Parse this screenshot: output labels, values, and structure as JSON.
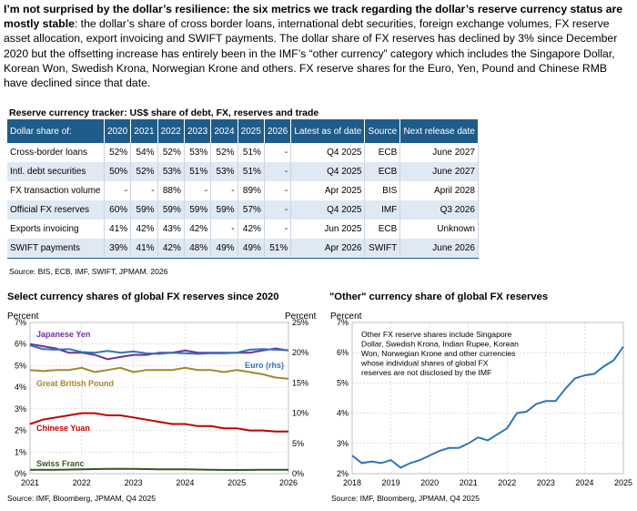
{
  "intro": {
    "bold": "I’m not surprised by the dollar’s resilience: the six metrics we track regarding the dollar’s reserve currency status are mostly stable",
    "rest": ": the dollar’s share of cross border loans, international debt securities, foreign exchange volumes, FX reserve asset allocation, export invoicing and SWIFT payments.  The dollar share of FX reserves has declined by 3% since December 2020 but the offsetting increase has entirely been in the IMF’s “other currency” category which includes the Singapore Dollar, Korean Won, Swedish Krona, Norwegian Krone and others.  FX reserve shares for the Euro, Yen, Pound and Chinese RMB have declined since that date."
  },
  "table": {
    "title": "Reserve currency tracker: US$ share of debt, FX, reserves and trade",
    "headers": [
      "Dollar share of:",
      "2020",
      "2021",
      "2022",
      "2023",
      "2024",
      "2025",
      "2026",
      "Latest as of date",
      "Source",
      "Next release date"
    ],
    "rows": [
      [
        "Cross-border loans",
        "52%",
        "54%",
        "52%",
        "53%",
        "52%",
        "51%",
        "-",
        "Q4 2025",
        "ECB",
        "June 2027"
      ],
      [
        "Intl. debt securities",
        "50%",
        "52%",
        "53%",
        "51%",
        "53%",
        "51%",
        "-",
        "Q4 2025",
        "ECB",
        "June 2027"
      ],
      [
        "FX transaction volume",
        "-",
        "-",
        "88%",
        "-",
        "-",
        "89%",
        "-",
        "Apr 2025",
        "BIS",
        "April 2028"
      ],
      [
        "Official FX reserves",
        "60%",
        "59%",
        "59%",
        "59%",
        "59%",
        "57%",
        "-",
        "Q4 2025",
        "IMF",
        "Q3 2026"
      ],
      [
        "Exports invoicing",
        "41%",
        "42%",
        "43%",
        "42%",
        "-",
        "42%",
        "-",
        "Jun 2025",
        "ECB",
        "Unknown"
      ],
      [
        "SWIFT payments",
        "39%",
        "41%",
        "42%",
        "48%",
        "49%",
        "49%",
        "51%",
        "Apr 2026",
        "SWIFT",
        "June 2026"
      ]
    ],
    "source": "Source: BIS, ECB, IMF, SWIFT, JPMAM. 2026"
  },
  "colors": {
    "header": "#1f5c8a",
    "alt_row": "#dfe9f4",
    "yen": "#7030a0",
    "euro": "#2e75b6",
    "gbp": "#a6862e",
    "cny": "#c00000",
    "chf": "#375623",
    "other": "#2e75b6"
  },
  "chart_data": [
    {
      "type": "line",
      "title": "Select currency shares of global FX reserves since 2020",
      "ylabel": "Percent",
      "y2label": "Percent",
      "ylim": [
        0,
        7
      ],
      "y2lim": [
        0,
        25
      ],
      "yticks": [
        "0%",
        "1%",
        "2%",
        "3%",
        "4%",
        "5%",
        "6%",
        "7%"
      ],
      "y2ticks": [
        "0%",
        "5%",
        "10%",
        "15%",
        "20%",
        "25%"
      ],
      "xticks": [
        "2021",
        "2022",
        "2023",
        "2024",
        "2025",
        "2026"
      ],
      "xlim": [
        2021,
        2026
      ],
      "grid": true,
      "series": [
        {
          "name": "Japanese Yen",
          "axis": "left",
          "x": [
            2021.0,
            2021.25,
            2021.5,
            2021.75,
            2022.0,
            2022.25,
            2022.5,
            2022.75,
            2023.0,
            2023.25,
            2023.5,
            2023.75,
            2024.0,
            2024.25,
            2024.5,
            2024.75,
            2025.0,
            2025.25,
            2025.5,
            2025.75,
            2026.0
          ],
          "y": [
            6.0,
            5.9,
            5.8,
            5.6,
            5.6,
            5.5,
            5.3,
            5.4,
            5.5,
            5.5,
            5.6,
            5.6,
            5.7,
            5.6,
            5.6,
            5.6,
            5.6,
            5.6,
            5.7,
            5.8,
            5.7
          ]
        },
        {
          "name": "Euro (rhs)",
          "axis": "right",
          "x": [
            2021.0,
            2021.25,
            2021.5,
            2021.75,
            2022.0,
            2022.25,
            2022.5,
            2022.75,
            2023.0,
            2023.25,
            2023.5,
            2023.75,
            2024.0,
            2024.25,
            2024.5,
            2024.75,
            2025.0,
            2025.25,
            2025.5,
            2025.75,
            2026.0
          ],
          "y": [
            21.2,
            20.6,
            20.5,
            20.6,
            20.1,
            20.0,
            20.3,
            20.0,
            20.2,
            19.9,
            19.8,
            20.0,
            19.9,
            19.8,
            19.9,
            19.9,
            20.0,
            20.5,
            20.6,
            20.5,
            20.4
          ]
        },
        {
          "name": "Great British Pound",
          "axis": "left",
          "x": [
            2021.0,
            2021.25,
            2021.5,
            2021.75,
            2022.0,
            2022.25,
            2022.5,
            2022.75,
            2023.0,
            2023.25,
            2023.5,
            2023.75,
            2024.0,
            2024.25,
            2024.5,
            2024.75,
            2025.0,
            2025.25,
            2025.5,
            2025.75,
            2026.0
          ],
          "y": [
            4.8,
            4.75,
            4.8,
            4.8,
            4.9,
            4.7,
            4.8,
            4.9,
            4.7,
            4.8,
            4.8,
            4.8,
            4.9,
            4.8,
            4.8,
            4.7,
            4.8,
            4.7,
            4.6,
            4.45,
            4.4
          ]
        },
        {
          "name": "Chinese Yuan",
          "axis": "left",
          "x": [
            2021.0,
            2021.25,
            2021.5,
            2021.75,
            2022.0,
            2022.25,
            2022.5,
            2022.75,
            2023.0,
            2023.25,
            2023.5,
            2023.75,
            2024.0,
            2024.25,
            2024.5,
            2024.75,
            2025.0,
            2025.25,
            2025.5,
            2025.75,
            2026.0
          ],
          "y": [
            2.3,
            2.5,
            2.6,
            2.7,
            2.8,
            2.8,
            2.7,
            2.7,
            2.6,
            2.5,
            2.4,
            2.3,
            2.3,
            2.2,
            2.2,
            2.1,
            2.1,
            2.0,
            2.0,
            1.95,
            1.95
          ]
        },
        {
          "name": "Swiss Franc",
          "axis": "left",
          "x": [
            2021.0,
            2021.5,
            2022.0,
            2022.5,
            2023.0,
            2023.5,
            2024.0,
            2024.5,
            2025.0,
            2025.5,
            2026.0
          ],
          "y": [
            0.18,
            0.18,
            0.2,
            0.22,
            0.22,
            0.2,
            0.2,
            0.18,
            0.17,
            0.18,
            0.18
          ]
        }
      ],
      "source": "Source: IMF, Bloomberg, JPMAM, Q4 2025"
    },
    {
      "type": "line",
      "title": "\"Other\" currency share of global FX reserves",
      "ylabel": "Percent",
      "ylim": [
        2,
        7
      ],
      "yticks": [
        "2%",
        "3%",
        "4%",
        "5%",
        "6%",
        "7%"
      ],
      "xticks": [
        "2018",
        "2019",
        "2020",
        "2021",
        "2022",
        "2023",
        "2024",
        "2025"
      ],
      "xlim": [
        2018,
        2025
      ],
      "grid": true,
      "annotation": "Other FX reserve shares include Singapore Dollar, Swedish Krona, Indian Rupee, Korean Won, Norwegian Krone and other currencies whose individual shares of global FX reserves are not disclosed by the IMF",
      "series": [
        {
          "name": "Other",
          "x": [
            2018.0,
            2018.25,
            2018.5,
            2018.75,
            2019.0,
            2019.25,
            2019.5,
            2019.75,
            2020.0,
            2020.25,
            2020.5,
            2020.75,
            2021.0,
            2021.25,
            2021.5,
            2021.75,
            2022.0,
            2022.25,
            2022.5,
            2022.75,
            2023.0,
            2023.25,
            2023.5,
            2023.75,
            2024.0,
            2024.25,
            2024.5,
            2024.75,
            2025.0
          ],
          "y": [
            2.6,
            2.35,
            2.4,
            2.35,
            2.45,
            2.2,
            2.35,
            2.45,
            2.6,
            2.75,
            2.85,
            2.85,
            3.0,
            3.2,
            3.1,
            3.3,
            3.5,
            4.0,
            4.05,
            4.3,
            4.4,
            4.4,
            4.8,
            5.15,
            5.25,
            5.3,
            5.55,
            5.75,
            6.2
          ]
        }
      ],
      "source": "Source: IMF, Bloomberg, JPMAM, Q4 2025"
    }
  ]
}
